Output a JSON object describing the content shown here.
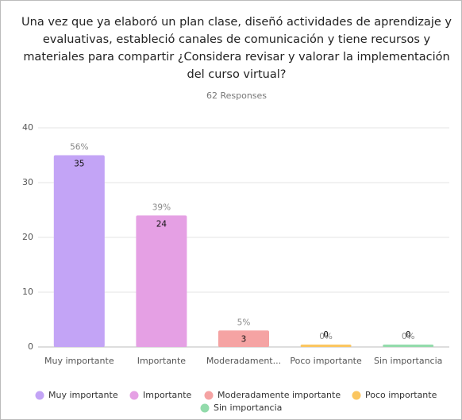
{
  "chart_data": {
    "type": "bar",
    "title_lines": [
      "Una vez que ya elaboró un plan clase, diseñó actividades de aprendizaje y",
      "evaluativas, estableció canales de comunicación y tiene recursos y",
      "materiales para compartir ¿Considera revisar y valorar la implementación",
      "del curso virtual?"
    ],
    "subtitle": "62 Responses",
    "categories": [
      "Muy importante",
      "Importante",
      "Moderadament...",
      "Poco importante",
      "Sin importancia"
    ],
    "values": [
      35,
      24,
      3,
      0,
      0
    ],
    "percent_labels": [
      "56%",
      "39%",
      "5%",
      "0%",
      "0%"
    ],
    "colors": [
      "#c3a4f6",
      "#e5a0e4",
      "#f5a3a3",
      "#fbc660",
      "#92dbab"
    ],
    "legend": [
      "Muy importante",
      "Importante",
      "Moderadamente importante",
      "Poco importante",
      "Sin importancia"
    ],
    "ylim": [
      0,
      40
    ],
    "yticks": [
      0,
      10,
      20,
      30,
      40
    ],
    "grid": true
  }
}
